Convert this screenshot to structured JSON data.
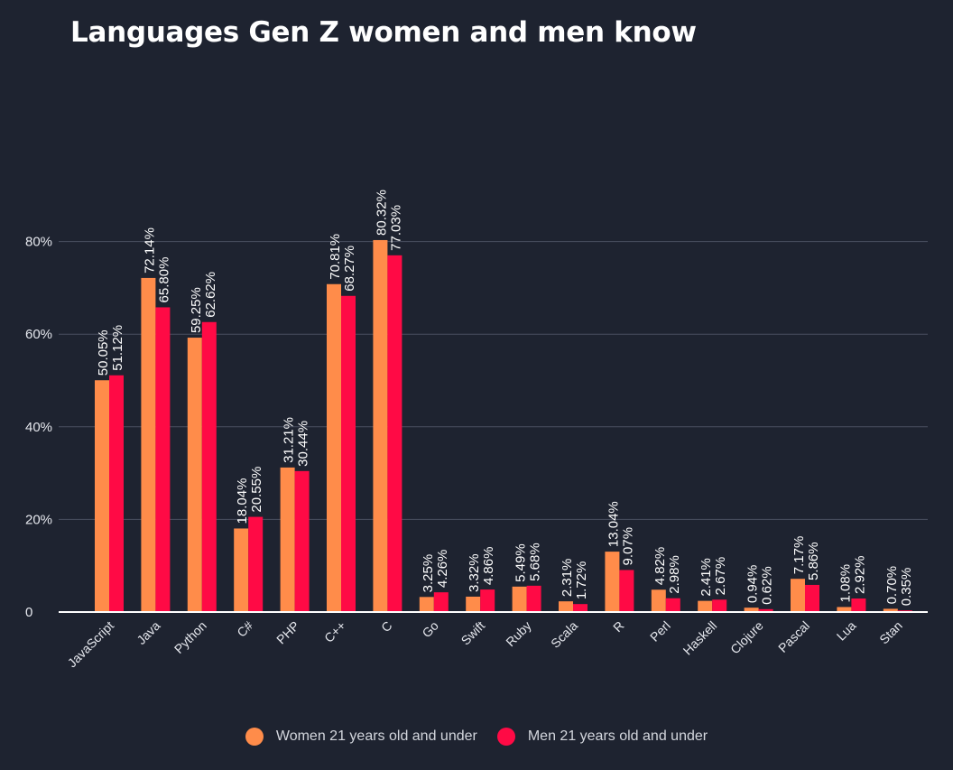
{
  "chart_data": {
    "type": "bar",
    "title": "Languages Gen Z women and men know",
    "xlabel": "",
    "ylabel": "",
    "ylim": [
      0,
      80
    ],
    "grid": true,
    "legend_position": "bottom",
    "y_ticks": [
      {
        "value": 0,
        "label": "0"
      },
      {
        "value": 20,
        "label": "20%"
      },
      {
        "value": 40,
        "label": "40%"
      },
      {
        "value": 60,
        "label": "60%"
      },
      {
        "value": 80,
        "label": "80%"
      }
    ],
    "categories": [
      "JavaScript",
      "Java",
      "Python",
      "C#",
      "PHP",
      "C++",
      "C",
      "Go",
      "Swift",
      "Ruby",
      "Scala",
      "R",
      "Perl",
      "Haskell",
      "Clojure",
      "Pascal",
      "Lua",
      "Stan"
    ],
    "series": [
      {
        "name": "Women 21 years old and under",
        "color": "#ff8c4a",
        "values": [
          50.05,
          72.14,
          59.25,
          18.04,
          31.21,
          70.81,
          80.32,
          3.25,
          3.32,
          5.49,
          2.31,
          13.04,
          4.82,
          2.41,
          0.94,
          7.17,
          1.08,
          0.7
        ],
        "labels": [
          "50.05%",
          "72.14%",
          "59.25%",
          "18.04%",
          "31.21%",
          "70.81%",
          "80.32%",
          "3.25%",
          "3.32%",
          "5.49%",
          "2.31%",
          "13.04%",
          "4.82%",
          "2.41%",
          "0.94%",
          "7.17%",
          "1.08%",
          "0.70%"
        ]
      },
      {
        "name": "Men 21 years old and under",
        "color": "#ff0a45",
        "values": [
          51.12,
          65.8,
          62.62,
          20.55,
          30.44,
          68.27,
          77.03,
          4.26,
          4.86,
          5.68,
          1.72,
          9.07,
          2.98,
          2.67,
          0.62,
          5.86,
          2.92,
          0.35
        ],
        "labels": [
          "51.12%",
          "65.80%",
          "62.62%",
          "20.55%",
          "30.44%",
          "68.27%",
          "77.03%",
          "4.26%",
          "4.86%",
          "5.68%",
          "1.72%",
          "9.07%",
          "2.98%",
          "2.67%",
          "0.62%",
          "5.86%",
          "2.92%",
          "0.35%"
        ]
      }
    ]
  }
}
